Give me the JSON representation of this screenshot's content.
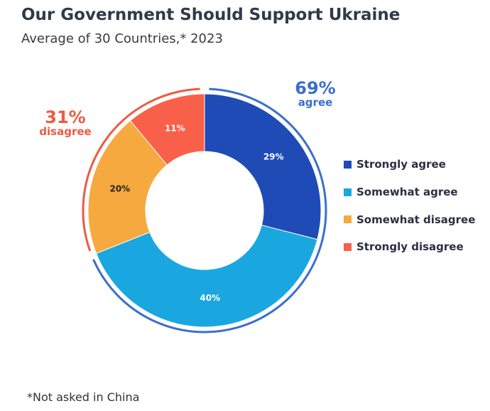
{
  "title": "Our Government Should Support Ukraine",
  "subtitle": "Average of 30 Countries,* 2023",
  "footnote": "*Not asked in China",
  "chart_data": {
    "type": "pie",
    "donut": true,
    "title": "Our Government Should Support Ukraine",
    "subtitle": "Average of 30 Countries,* 2023",
    "categories": [
      "Strongly agree",
      "Somewhat agree",
      "Somewhat disagree",
      "Strongly disagree"
    ],
    "values": [
      29,
      40,
      20,
      11
    ],
    "data_labels": [
      "29%",
      "40%",
      "20%",
      "11%"
    ],
    "colors": [
      "#1e4bb5",
      "#1aa7e0",
      "#f5a93f",
      "#f9604a"
    ],
    "label_colors": [
      "#ffffff",
      "#ffffff",
      "#222222",
      "#ffffff"
    ],
    "legend_placement": "right",
    "groups": [
      {
        "value": "69%",
        "label": "agree",
        "color": "#3a6fd0",
        "covers": [
          "Strongly agree",
          "Somewhat agree"
        ]
      },
      {
        "value": "31%",
        "label": "disagree",
        "color": "#ef5a44",
        "covers": [
          "Somewhat disagree",
          "Strongly disagree"
        ]
      }
    ]
  }
}
